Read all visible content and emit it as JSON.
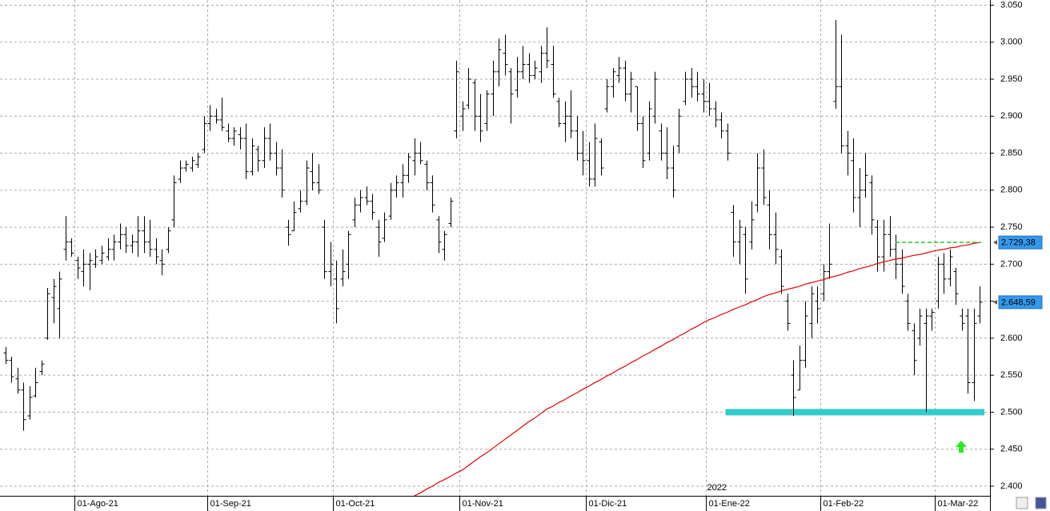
{
  "chart_data": {
    "type": "ohlc",
    "categories": [
      null,
      null,
      null,
      null,
      null,
      null,
      null,
      null,
      null,
      null,
      null,
      null,
      "01-Ago-21",
      null,
      null,
      null,
      null,
      null,
      null,
      null,
      null,
      null,
      null,
      null,
      null,
      null,
      null,
      null,
      null,
      null,
      null,
      null,
      null,
      null,
      "01-Sep-21",
      null,
      null,
      null,
      null,
      null,
      null,
      null,
      null,
      null,
      null,
      null,
      null,
      null,
      null,
      null,
      null,
      null,
      null,
      null,
      null,
      "01-Oct-21",
      null,
      null,
      null,
      null,
      null,
      null,
      null,
      null,
      null,
      null,
      null,
      null,
      null,
      null,
      null,
      null,
      null,
      null,
      null,
      null,
      "01-Nov-21",
      null,
      null,
      null,
      null,
      null,
      null,
      null,
      null,
      null,
      null,
      null,
      null,
      null,
      null,
      null,
      null,
      null,
      null,
      null,
      null,
      "01-Dic-21",
      null,
      null,
      null,
      null,
      null,
      null,
      null,
      null,
      null,
      null,
      null,
      null,
      null,
      null,
      null,
      null,
      null,
      null,
      null,
      "01-Ene-22",
      null,
      null,
      null,
      null,
      null,
      null,
      null,
      null,
      null,
      null,
      null,
      null,
      null,
      null,
      null,
      null,
      null,
      null,
      "01-Feb-22",
      null,
      null,
      null,
      null,
      null,
      null,
      null,
      null,
      null,
      null,
      null,
      null,
      null,
      null,
      null,
      null,
      null,
      null,
      "01-Mar-22",
      null,
      null,
      null,
      null,
      null,
      null,
      null
    ],
    "year_label": "2022",
    "ohlc": [
      [
        2580,
        2588,
        2565,
        2570
      ],
      [
        2570,
        2575,
        2540,
        2548
      ],
      [
        2545,
        2560,
        2525,
        2530
      ],
      [
        2530,
        2540,
        2475,
        2490
      ],
      [
        2495,
        2535,
        2490,
        2520
      ],
      [
        2522,
        2560,
        2520,
        2540
      ],
      [
        2555,
        2570,
        2550,
        2565
      ],
      [
        2600,
        2668,
        2598,
        2660
      ],
      [
        2655,
        2680,
        2620,
        2670
      ],
      [
        2640,
        2690,
        2600,
        2680
      ],
      [
        2720,
        2765,
        2705,
        2730
      ],
      [
        2730,
        2735,
        2710,
        2715
      ],
      [
        2705,
        2710,
        2680,
        2695
      ],
      [
        2690,
        2720,
        2670,
        2700
      ],
      [
        2700,
        2715,
        2665,
        2705
      ],
      [
        2700,
        2720,
        2695,
        2710
      ],
      [
        2705,
        2725,
        2700,
        2715
      ],
      [
        2710,
        2735,
        2705,
        2720
      ],
      [
        2720,
        2740,
        2705,
        2730
      ],
      [
        2730,
        2755,
        2720,
        2740
      ],
      [
        2740,
        2750,
        2715,
        2725
      ],
      [
        2725,
        2740,
        2715,
        2730
      ],
      [
        2730,
        2765,
        2710,
        2745
      ],
      [
        2745,
        2765,
        2715,
        2730
      ],
      [
        2730,
        2760,
        2710,
        2720
      ],
      [
        2720,
        2735,
        2700,
        2710
      ],
      [
        2705,
        2720,
        2685,
        2700
      ],
      [
        2720,
        2750,
        2715,
        2745
      ],
      [
        2760,
        2820,
        2750,
        2810
      ],
      [
        2815,
        2840,
        2810,
        2830
      ],
      [
        2830,
        2840,
        2825,
        2835
      ],
      [
        2830,
        2845,
        2825,
        2840
      ],
      [
        2835,
        2850,
        2830,
        2845
      ],
      [
        2855,
        2900,
        2850,
        2890
      ],
      [
        2890,
        2915,
        2880,
        2900
      ],
      [
        2900,
        2910,
        2890,
        2895
      ],
      [
        2895,
        2925,
        2880,
        2885
      ],
      [
        2880,
        2890,
        2865,
        2870
      ],
      [
        2870,
        2885,
        2860,
        2880
      ],
      [
        2875,
        2885,
        2855,
        2870
      ],
      [
        2870,
        2890,
        2815,
        2825
      ],
      [
        2825,
        2870,
        2820,
        2860
      ],
      [
        2855,
        2860,
        2825,
        2840
      ],
      [
        2840,
        2885,
        2830,
        2870
      ],
      [
        2870,
        2890,
        2840,
        2850
      ],
      [
        2850,
        2865,
        2820,
        2830
      ],
      [
        2830,
        2855,
        2790,
        2800
      ],
      [
        2750,
        2760,
        2725,
        2740
      ],
      [
        2745,
        2785,
        2745,
        2770
      ],
      [
        2775,
        2800,
        2770,
        2785
      ],
      [
        2785,
        2840,
        2780,
        2830
      ],
      [
        2825,
        2850,
        2800,
        2810
      ],
      [
        2810,
        2835,
        2795,
        2800
      ],
      [
        2750,
        2760,
        2680,
        2690
      ],
      [
        2690,
        2730,
        2670,
        2700
      ],
      [
        2680,
        2705,
        2620,
        2640
      ],
      [
        2680,
        2720,
        2670,
        2690
      ],
      [
        2700,
        2745,
        2680,
        2740
      ],
      [
        2760,
        2790,
        2750,
        2780
      ],
      [
        2780,
        2800,
        2770,
        2790
      ],
      [
        2790,
        2805,
        2780,
        2785
      ],
      [
        2785,
        2795,
        2760,
        2770
      ],
      [
        2750,
        2760,
        2710,
        2730
      ],
      [
        2735,
        2770,
        2730,
        2760
      ],
      [
        2765,
        2810,
        2760,
        2800
      ],
      [
        2800,
        2820,
        2790,
        2810
      ],
      [
        2810,
        2835,
        2790,
        2820
      ],
      [
        2820,
        2850,
        2810,
        2845
      ],
      [
        2840,
        2870,
        2820,
        2850
      ],
      [
        2850,
        2865,
        2835,
        2840
      ],
      [
        2835,
        2840,
        2800,
        2810
      ],
      [
        2810,
        2820,
        2770,
        2780
      ],
      [
        2760,
        2765,
        2715,
        2730
      ],
      [
        2720,
        2745,
        2705,
        2740
      ],
      [
        2755,
        2790,
        2750,
        2785
      ],
      [
        2880,
        2975,
        2870,
        2960
      ],
      [
        2900,
        2920,
        2880,
        2910
      ],
      [
        2915,
        2965,
        2910,
        2950
      ],
      [
        2945,
        2950,
        2880,
        2900
      ],
      [
        2900,
        2930,
        2865,
        2880
      ],
      [
        2890,
        2935,
        2880,
        2930
      ],
      [
        2930,
        2975,
        2900,
        2960
      ],
      [
        2960,
        3005,
        2940,
        2990
      ],
      [
        2985,
        3010,
        2955,
        2970
      ],
      [
        2960,
        2965,
        2890,
        2930
      ],
      [
        2935,
        2980,
        2925,
        2960
      ],
      [
        2960,
        2995,
        2950,
        2970
      ],
      [
        2970,
        2985,
        2945,
        2955
      ],
      [
        2955,
        2975,
        2950,
        2965
      ],
      [
        2960,
        2995,
        2945,
        2985
      ],
      [
        2985,
        3020,
        2965,
        2975
      ],
      [
        2970,
        2995,
        2925,
        2930
      ],
      [
        2920,
        2925,
        2885,
        2890
      ],
      [
        2890,
        2920,
        2865,
        2900
      ],
      [
        2900,
        2935,
        2870,
        2880
      ],
      [
        2880,
        2900,
        2840,
        2850
      ],
      [
        2850,
        2880,
        2820,
        2840
      ],
      [
        2840,
        2865,
        2805,
        2815
      ],
      [
        2815,
        2890,
        2805,
        2870
      ],
      [
        2865,
        2870,
        2820,
        2830
      ],
      [
        2910,
        2950,
        2905,
        2940
      ],
      [
        2940,
        2965,
        2925,
        2960
      ],
      [
        2955,
        2980,
        2945,
        2965
      ],
      [
        2965,
        2975,
        2920,
        2930
      ],
      [
        2930,
        2960,
        2905,
        2950
      ],
      [
        2940,
        2940,
        2880,
        2890
      ],
      [
        2890,
        2900,
        2830,
        2840
      ],
      [
        2850,
        2920,
        2840,
        2910
      ],
      [
        2900,
        2960,
        2890,
        2950
      ],
      [
        2880,
        2890,
        2840,
        2850
      ],
      [
        2850,
        2885,
        2815,
        2830
      ],
      [
        2830,
        2860,
        2790,
        2800
      ],
      [
        2860,
        2910,
        2850,
        2900
      ],
      [
        2920,
        2960,
        2915,
        2950
      ],
      [
        2950,
        2965,
        2925,
        2940
      ],
      [
        2940,
        2960,
        2920,
        2930
      ],
      [
        2930,
        2950,
        2905,
        2920
      ],
      [
        2920,
        2945,
        2900,
        2910
      ],
      [
        2910,
        2920,
        2885,
        2895
      ],
      [
        2895,
        2905,
        2870,
        2880
      ],
      [
        2880,
        2890,
        2840,
        2850
      ],
      [
        2770,
        2780,
        2710,
        2730
      ],
      [
        2730,
        2760,
        2700,
        2750
      ],
      [
        2740,
        2750,
        2660,
        2680
      ],
      [
        2730,
        2785,
        2720,
        2760
      ],
      [
        2780,
        2850,
        2770,
        2830
      ],
      [
        2830,
        2855,
        2780,
        2790
      ],
      [
        2780,
        2800,
        2720,
        2740
      ],
      [
        2740,
        2770,
        2700,
        2720
      ],
      [
        2710,
        2720,
        2660,
        2670
      ],
      [
        2650,
        2660,
        2610,
        2620
      ],
      [
        2550,
        2570,
        2495,
        2520
      ],
      [
        2530,
        2590,
        2530,
        2570
      ],
      [
        2570,
        2650,
        2560,
        2630
      ],
      [
        2620,
        2670,
        2600,
        2660
      ],
      [
        2650,
        2670,
        2620,
        2640
      ],
      [
        2660,
        2700,
        2650,
        2690
      ],
      [
        2690,
        2755,
        2680,
        2700
      ],
      [
        2920,
        3030,
        2910,
        2940
      ],
      [
        2940,
        3010,
        2850,
        2860
      ],
      [
        2860,
        2880,
        2820,
        2850
      ],
      [
        2840,
        2870,
        2770,
        2790
      ],
      [
        2790,
        2830,
        2750,
        2800
      ],
      [
        2800,
        2850,
        2790,
        2820
      ],
      [
        2810,
        2820,
        2740,
        2760
      ],
      [
        2750,
        2760,
        2690,
        2710
      ],
      [
        2710,
        2760,
        2690,
        2740
      ],
      [
        2740,
        2765,
        2710,
        2720
      ],
      [
        2720,
        2740,
        2680,
        2700
      ],
      [
        2700,
        2720,
        2660,
        2670
      ],
      [
        2650,
        2660,
        2610,
        2620
      ],
      [
        2610,
        2620,
        2550,
        2570
      ],
      [
        2600,
        2640,
        2590,
        2630
      ],
      [
        2620,
        2640,
        2500,
        2630
      ],
      [
        2630,
        2640,
        2610,
        2635
      ],
      [
        2650,
        2710,
        2640,
        2700
      ],
      [
        2700,
        2715,
        2660,
        2680
      ],
      [
        2680,
        2720,
        2670,
        2710
      ],
      [
        2690,
        2695,
        2645,
        2660
      ],
      [
        2630,
        2640,
        2610,
        2620
      ],
      [
        2630,
        2640,
        2525,
        2540
      ],
      [
        2540,
        2640,
        2515,
        2620
      ],
      [
        2630,
        2670,
        2620,
        2648.59
      ]
    ],
    "bar_color": "#000000",
    "moving_average": {
      "color": "#e00000",
      "values": [
        null,
        null,
        null,
        null,
        null,
        null,
        null,
        null,
        null,
        null,
        null,
        null,
        null,
        null,
        null,
        null,
        null,
        null,
        null,
        null,
        null,
        null,
        null,
        null,
        null,
        null,
        null,
        null,
        null,
        null,
        null,
        null,
        null,
        null,
        null,
        null,
        null,
        null,
        null,
        null,
        null,
        null,
        null,
        null,
        null,
        null,
        null,
        null,
        null,
        null,
        null,
        null,
        null,
        null,
        null,
        null,
        null,
        null,
        null,
        null,
        null,
        null,
        null,
        null,
        null,
        null,
        null,
        null,
        2387,
        2391,
        2396,
        2400,
        2405,
        2409,
        2413,
        2418,
        2422,
        2428,
        2434,
        2440,
        2445,
        2451,
        2457,
        2463,
        2469,
        2475,
        2481,
        2487,
        2492,
        2498,
        2504,
        2508,
        2513,
        2517,
        2522,
        2526,
        2531,
        2535,
        2540,
        2544,
        2549,
        2553,
        2558,
        2562,
        2567,
        2571,
        2576,
        2580,
        2585,
        2589,
        2594,
        2598,
        2603,
        2607,
        2612,
        2616,
        2621,
        2625,
        2628,
        2632,
        2635,
        2639,
        2642,
        2645,
        2649,
        2652,
        2656,
        2659,
        2661,
        2664,
        2666,
        2668,
        2670,
        2673,
        2675,
        2677,
        2679,
        2682,
        2684,
        2686,
        2689,
        2691,
        2694,
        2696,
        2698,
        2701,
        2703,
        2705,
        2707,
        2708,
        2710,
        2712,
        2713,
        2715,
        2717,
        2719,
        2720,
        2722,
        2723,
        2725,
        2726,
        2728,
        2729.38
      ]
    },
    "support_level": {
      "value": 2500,
      "color": "#33cccc"
    },
    "resistance_level": {
      "value": 2729.38,
      "color": "#22cc22"
    },
    "value_tags": [
      {
        "value": 2729.38,
        "label": "2.729,38"
      },
      {
        "value": 2648.59,
        "label": "2.648,59"
      }
    ],
    "ylim": [
      2387,
      3057
    ],
    "yticks": [
      {
        "value": 2400,
        "label": "2.400"
      },
      {
        "value": 2450,
        "label": "2.450"
      },
      {
        "value": 2500,
        "label": "2.500"
      },
      {
        "value": 2550,
        "label": "2.550"
      },
      {
        "value": 2600,
        "label": "2.600"
      },
      {
        "value": 2650,
        "label": "2.650"
      },
      {
        "value": 2700,
        "label": "2.700"
      },
      {
        "value": 2750,
        "label": "2.750"
      },
      {
        "value": 2800,
        "label": "2.800"
      },
      {
        "value": 2850,
        "label": "2.850"
      },
      {
        "value": 2900,
        "label": "2.900"
      },
      {
        "value": 2950,
        "label": "2.950"
      },
      {
        "value": 3000,
        "label": "3.000"
      },
      {
        "value": 3050,
        "label": "3.050"
      }
    ],
    "grid": true
  }
}
